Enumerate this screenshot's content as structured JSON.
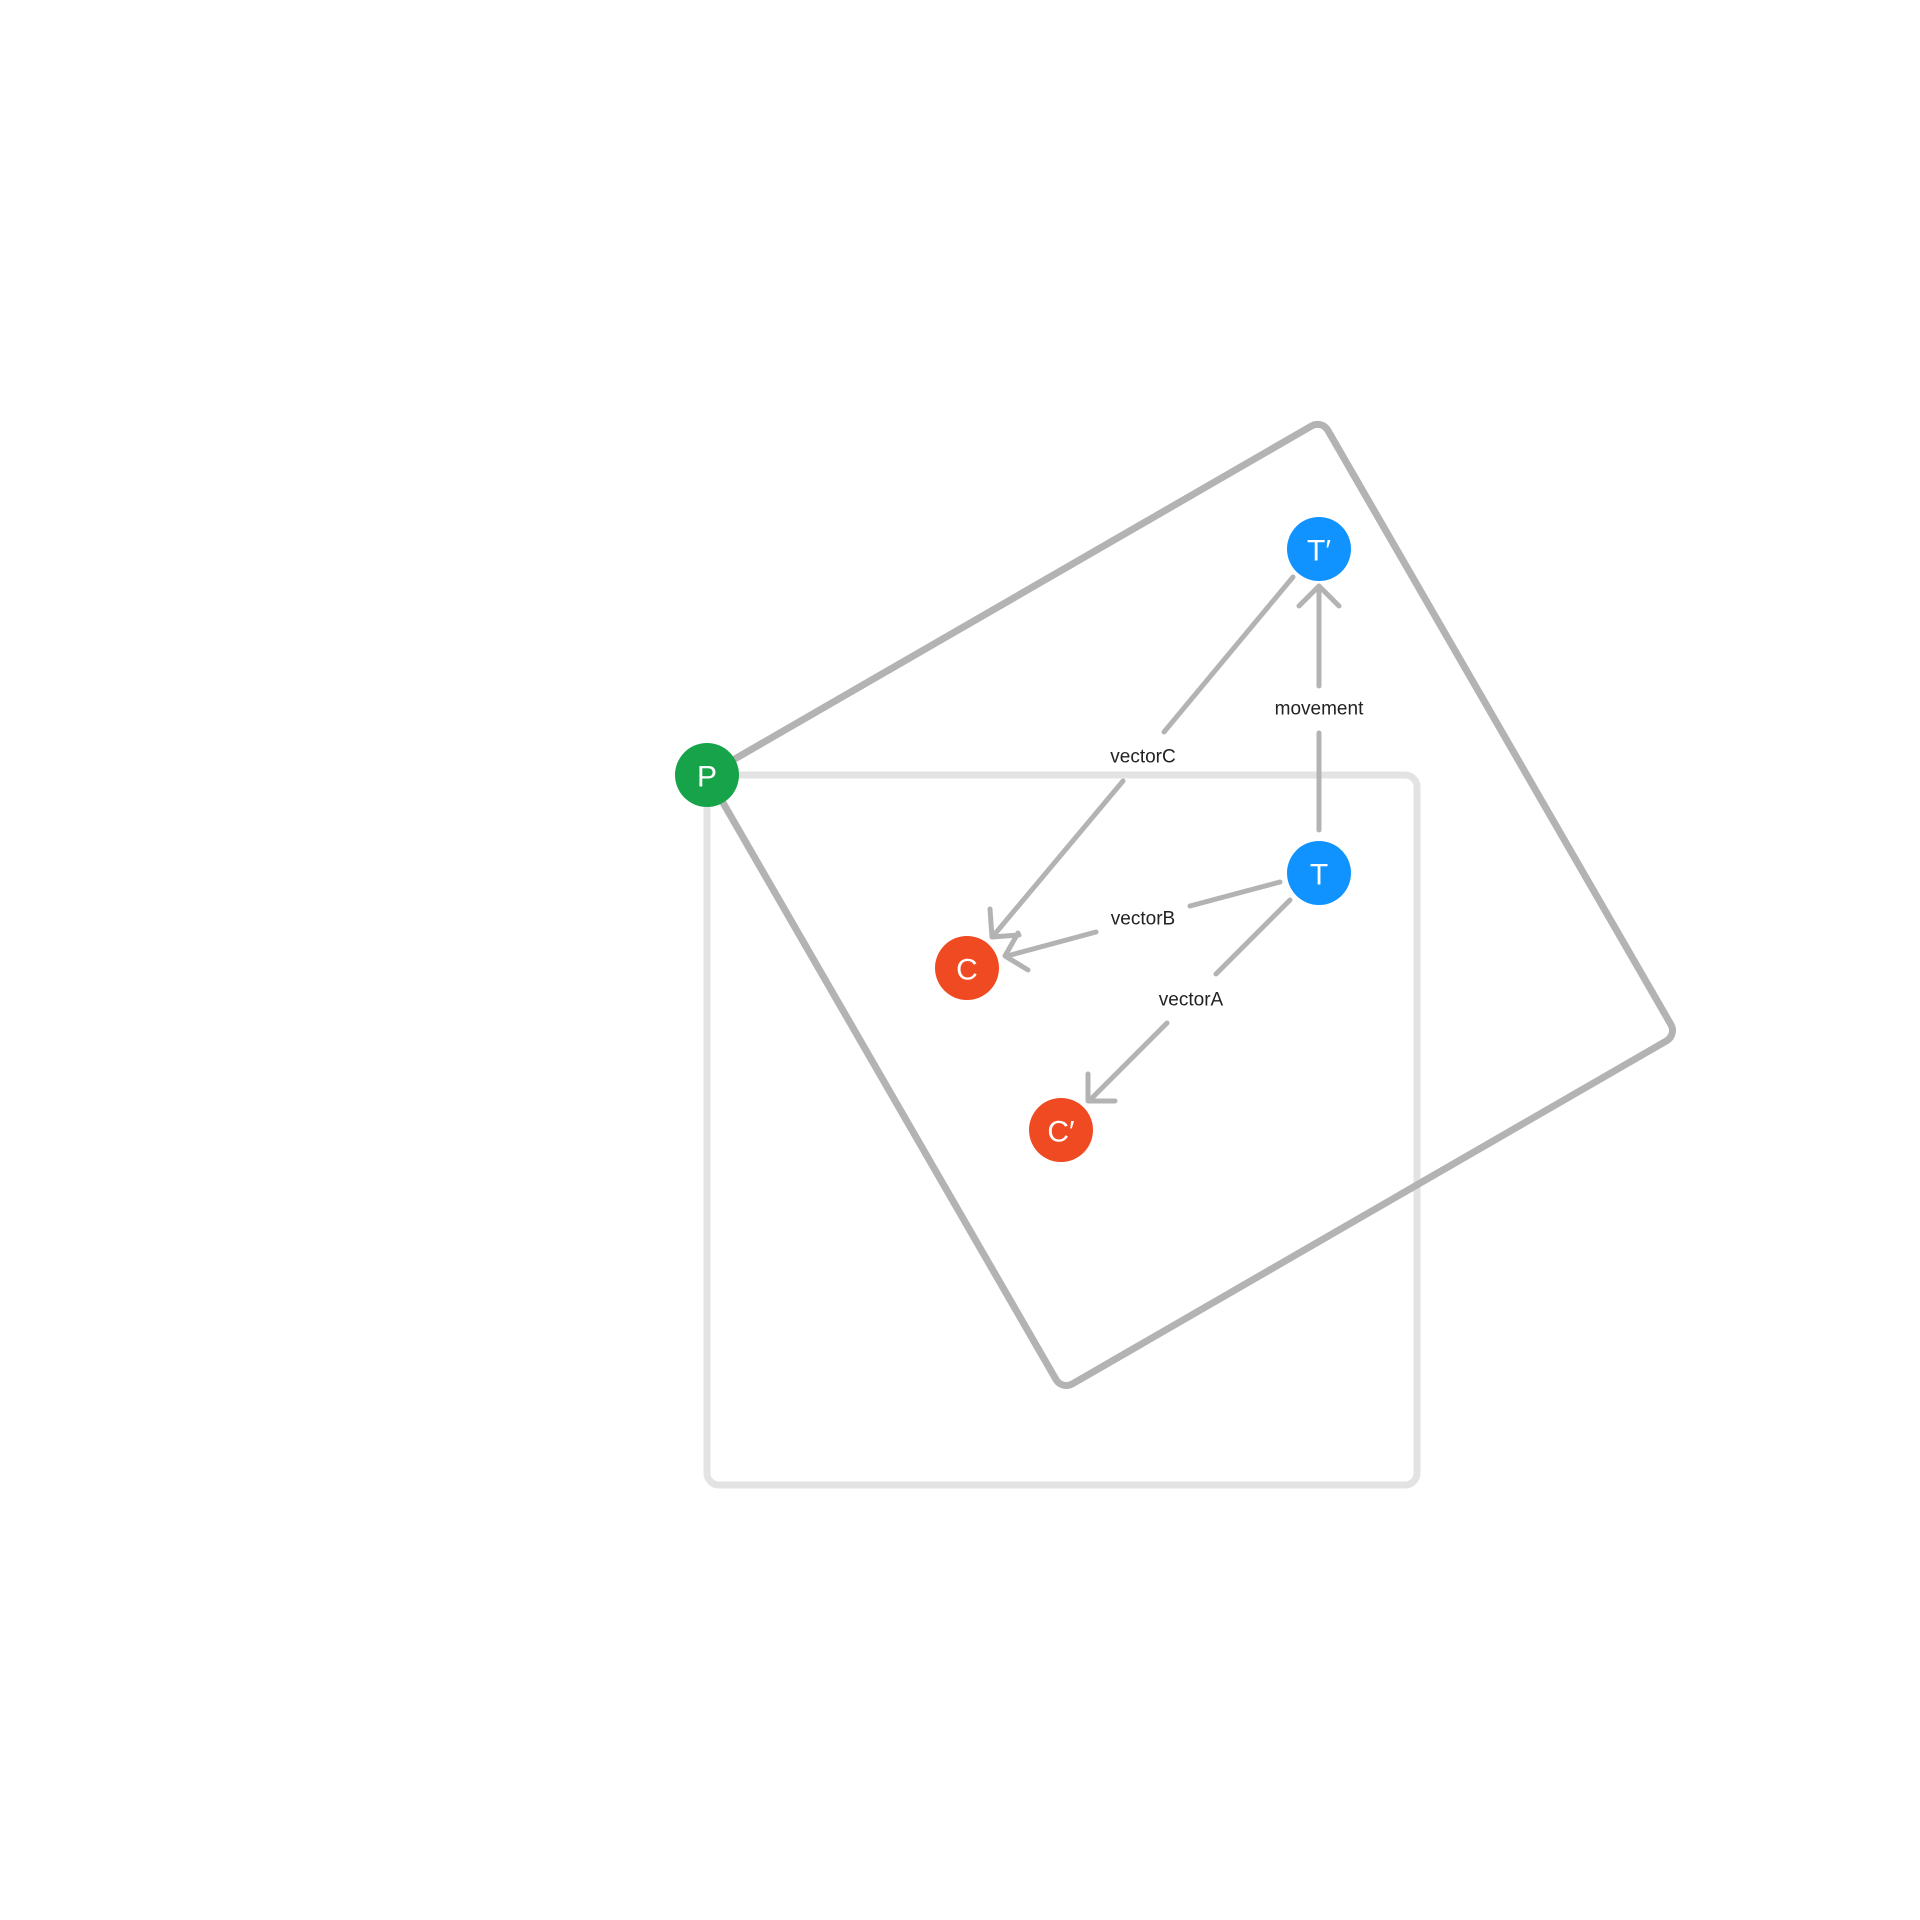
{
  "nodes": {
    "p": {
      "label": "P",
      "color": "#16a34a"
    },
    "t": {
      "label": "T",
      "color": "#1093ff"
    },
    "t_prime": {
      "label": "T′",
      "color": "#1093ff"
    },
    "c": {
      "label": "C",
      "color": "#f04a22"
    },
    "c_prime": {
      "label": "C′",
      "color": "#f04a22"
    }
  },
  "edges": {
    "movement": {
      "label": "movement",
      "from": "T",
      "to": "T′"
    },
    "vector_a": {
      "label": "vectorA",
      "from": "T",
      "to": "C′"
    },
    "vector_b": {
      "label": "vectorB",
      "from": "T",
      "to": "C"
    },
    "vector_c": {
      "label": "vectorC",
      "from": "T′",
      "to": "C"
    }
  },
  "shapes": {
    "original_square_color": "#e3e3e3",
    "rotated_square_color": "#b3b3b3",
    "arrow_color": "#b3b3b3"
  }
}
